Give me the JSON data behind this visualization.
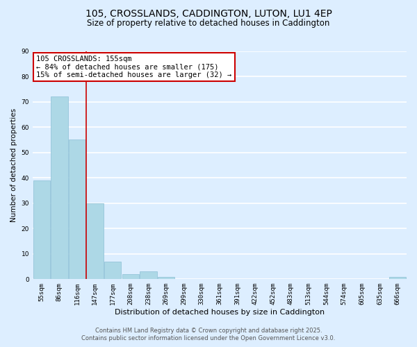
{
  "title": "105, CROSSLANDS, CADDINGTON, LUTON, LU1 4EP",
  "subtitle": "Size of property relative to detached houses in Caddington",
  "xlabel": "Distribution of detached houses by size in Caddington",
  "ylabel": "Number of detached properties",
  "categories": [
    "55sqm",
    "86sqm",
    "116sqm",
    "147sqm",
    "177sqm",
    "208sqm",
    "238sqm",
    "269sqm",
    "299sqm",
    "330sqm",
    "361sqm",
    "391sqm",
    "422sqm",
    "452sqm",
    "483sqm",
    "513sqm",
    "544sqm",
    "574sqm",
    "605sqm",
    "635sqm",
    "666sqm"
  ],
  "bar_values": [
    39,
    72,
    55,
    30,
    7,
    2,
    3,
    1,
    0,
    0,
    0,
    0,
    0,
    0,
    0,
    0,
    0,
    0,
    0,
    0,
    1
  ],
  "bar_color": "#add8e6",
  "bar_edge_color": "#8bbfd4",
  "red_line_index": 3,
  "ylim": [
    0,
    90
  ],
  "yticks": [
    0,
    10,
    20,
    30,
    40,
    50,
    60,
    70,
    80,
    90
  ],
  "annotation_title": "105 CROSSLANDS: 155sqm",
  "annotation_line1": "← 84% of detached houses are smaller (175)",
  "annotation_line2": "15% of semi-detached houses are larger (32) →",
  "annotation_box_facecolor": "#ffffff",
  "annotation_box_edgecolor": "#cc0000",
  "red_line_color": "#cc0000",
  "footer_line1": "Contains HM Land Registry data © Crown copyright and database right 2025.",
  "footer_line2": "Contains public sector information licensed under the Open Government Licence v3.0.",
  "background_color": "#ddeeff",
  "plot_background": "#ddeeff",
  "grid_color": "#ffffff",
  "title_fontsize": 10,
  "subtitle_fontsize": 8.5,
  "xlabel_fontsize": 8,
  "ylabel_fontsize": 7.5,
  "tick_fontsize": 6.5,
  "ann_fontsize": 7.5,
  "footer_fontsize": 6
}
